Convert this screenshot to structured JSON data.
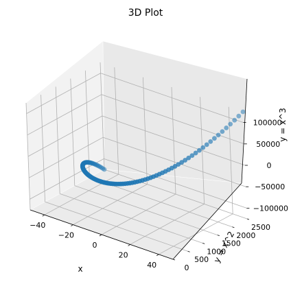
{
  "chart_data": {
    "type": "scatter",
    "projection": "3d",
    "title": "3D Plot",
    "xlabel": "x",
    "ylabel": "y = x^2",
    "zlabel": "y = x^3",
    "xlim": [
      -50,
      50
    ],
    "ylim": [
      0,
      2500
    ],
    "zlim": [
      -125000,
      125000
    ],
    "x_ticks": [
      "−40",
      "−20",
      "0",
      "20",
      "40"
    ],
    "x_tick_values": [
      -40,
      -20,
      0,
      20,
      40
    ],
    "y_ticks": [
      "0",
      "500",
      "1000",
      "1500",
      "2000",
      "2500"
    ],
    "y_tick_values": [
      0,
      500,
      1000,
      1500,
      2000,
      2500
    ],
    "z_ticks": [
      "−100000",
      "−50000",
      "0",
      "50000",
      "100000"
    ],
    "z_tick_values": [
      -100000,
      -50000,
      0,
      50000,
      100000
    ],
    "grid": true,
    "marker_color": "#1f77b4",
    "series": [
      {
        "x_range": [
          -50,
          50
        ],
        "point_count": 101,
        "y_formula": "x^2",
        "z_formula": "x^3"
      }
    ]
  }
}
